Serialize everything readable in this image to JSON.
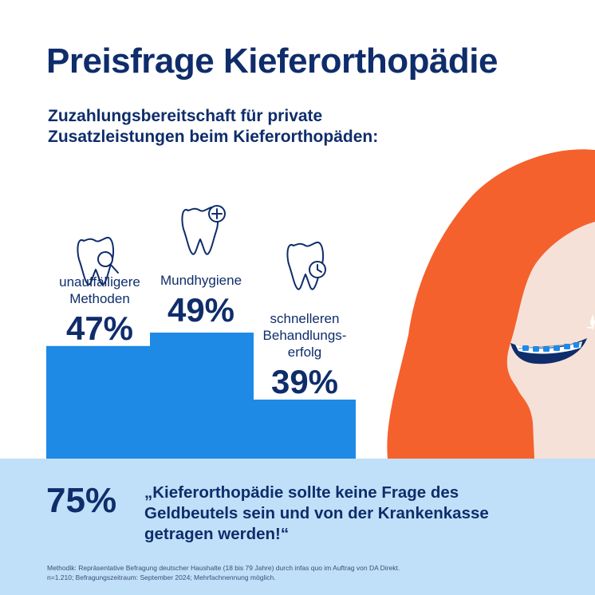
{
  "header": {
    "title": "Preisfrage Kieferorthopädie",
    "subtitle_lines": [
      "Zuzahlungsbereitschaft für private",
      "Zusatzleistungen beim Kieferorthopäden:"
    ]
  },
  "chart_data": {
    "type": "bar",
    "categories": [
      "unauffälligere Methoden",
      "Mundhygiene",
      "schnelleren Behandlungserfolg"
    ],
    "category_lines": [
      [
        "unauffälligere",
        "Methoden"
      ],
      [
        "Mundhygiene"
      ],
      [
        "schnelleren",
        "Behandlungs-",
        "erfolg"
      ]
    ],
    "values": [
      47,
      49,
      39
    ],
    "value_labels": [
      "47%",
      "49%",
      "39%"
    ],
    "icons": [
      "tooth-magnifier-icon",
      "tooth-plus-icon",
      "tooth-clock-icon"
    ],
    "bar_color": "#1e8ae6",
    "grid": false
  },
  "illustration": {
    "hair_color": "#f4612c",
    "skin_color": "#f6e1d9",
    "bracket_color": "#1e8ae6"
  },
  "bottom": {
    "stat": "75%",
    "quote_lines": [
      "„Kieferorthopädie sollte keine Frage des",
      "Geldbeutels sein und von der Krankenkasse",
      "getragen werden!“"
    ],
    "methodology_lines": [
      "Methodik: Repräsentative Befragung deutscher Haushalte (18 bis 79 Jahre) durch infas quo im Auftrag von DA Direkt.",
      "n=1.210; Befragungszeitraum: September 2024; Mehrfachnennung möglich."
    ],
    "background_color": "#bfe0f8"
  }
}
